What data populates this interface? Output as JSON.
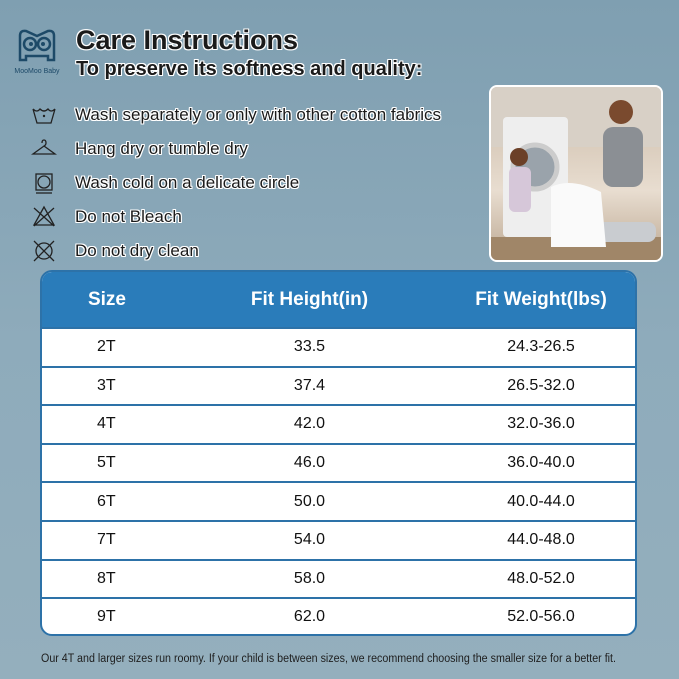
{
  "brand": "MooMoo Baby",
  "title": "Care Instructions",
  "subtitle": "To preserve its softness and quality:",
  "care": [
    {
      "icon": "wash-tub-icon",
      "text": "Wash separately or only with other cotton fabrics"
    },
    {
      "icon": "hanger-icon",
      "text": "Hang dry or tumble dry"
    },
    {
      "icon": "tumble-dry-icon",
      "text": "Wash cold on a delicate circle"
    },
    {
      "icon": "no-bleach-icon",
      "text": "Do not Bleach"
    },
    {
      "icon": "no-dry-clean-icon",
      "text": "Do not dry clean"
    }
  ],
  "table": {
    "headers": [
      "Size",
      "Fit Height(in)",
      "Fit Weight(lbs)"
    ],
    "rows": [
      [
        "2T",
        "33.5",
        "24.3-26.5"
      ],
      [
        "3T",
        "37.4",
        "26.5-32.0"
      ],
      [
        "4T",
        "42.0",
        "32.0-36.0"
      ],
      [
        "5T",
        "46.0",
        "36.0-40.0"
      ],
      [
        "6T",
        "50.0",
        "40.0-44.0"
      ],
      [
        "7T",
        "54.0",
        "44.0-48.0"
      ],
      [
        "8T",
        "58.0",
        "48.0-52.0"
      ],
      [
        "9T",
        "62.0",
        "52.0-56.0"
      ]
    ]
  },
  "note": "Our 4T and larger sizes run roomy. If your child is between sizes, we recommend choosing the smaller size for a better fit.",
  "colors": {
    "header": "#2a7cba",
    "border": "#2d72a8"
  }
}
